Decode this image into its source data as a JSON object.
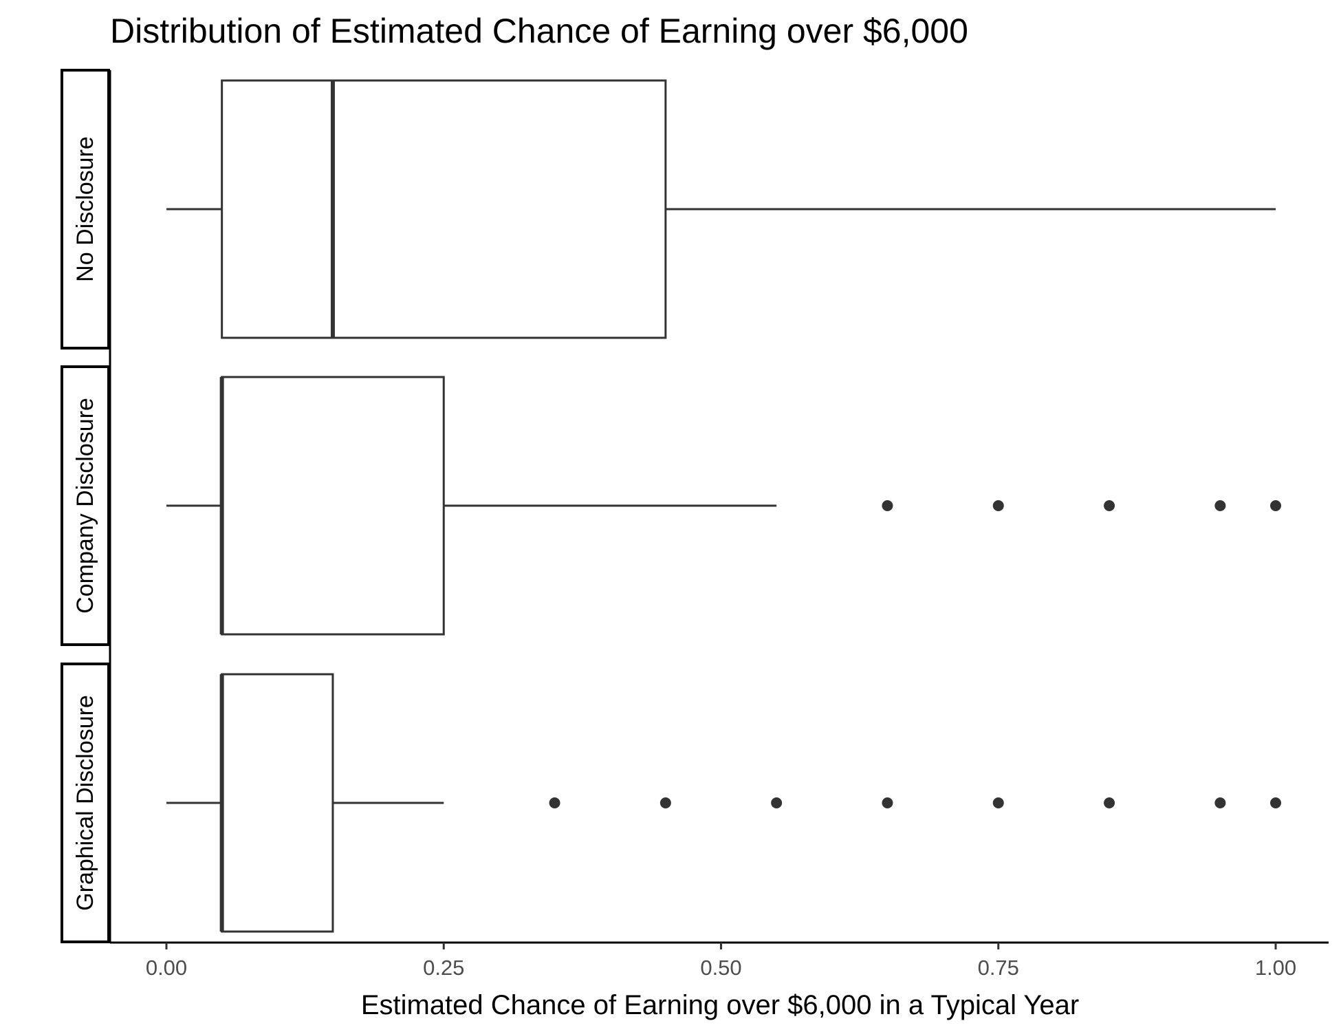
{
  "chart_data": {
    "type": "boxplot",
    "title": "Distribution of Estimated Chance of Earning over $6,000",
    "xlabel": "Estimated Chance of Earning over $6,000 in a Typical Year",
    "ylabel": "",
    "xlim": [
      0,
      1
    ],
    "x_ticks": [
      0,
      0.25,
      0.5,
      0.75,
      1
    ],
    "x_tick_labels": [
      "0.00",
      "0.25",
      "0.50",
      "0.75",
      "1.00"
    ],
    "grid": false,
    "legend": "none",
    "groups": [
      {
        "label": "No Disclosure",
        "whisker_low": 0.0,
        "q1": 0.05,
        "median": 0.15,
        "q3": 0.45,
        "whisker_high": 1.0,
        "outliers": []
      },
      {
        "label": "Company Disclosure",
        "whisker_low": 0.0,
        "q1": 0.05,
        "median": 0.05,
        "q3": 0.25,
        "whisker_high": 0.55,
        "outliers": [
          0.65,
          0.75,
          0.85,
          0.95,
          1.0
        ]
      },
      {
        "label": "Graphical Disclosure",
        "whisker_low": 0.0,
        "q1": 0.05,
        "median": 0.05,
        "q3": 0.15,
        "whisker_high": 0.25,
        "outliers": [
          0.35,
          0.45,
          0.55,
          0.65,
          0.75,
          0.85,
          0.95,
          1.0
        ]
      }
    ],
    "colors": {
      "box_stroke": "#333333",
      "box_fill": "#ffffff",
      "outlier": "#333333",
      "axis": "#000000",
      "tick_label": "#4d4d4d"
    }
  }
}
